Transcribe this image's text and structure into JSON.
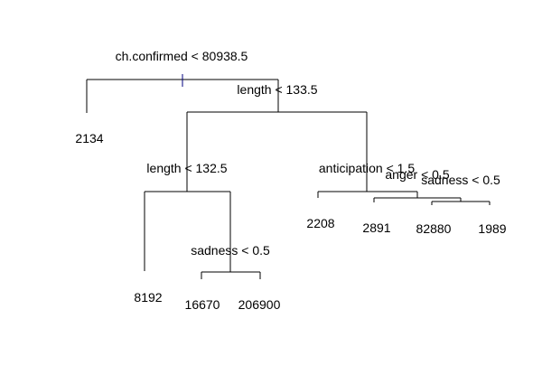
{
  "tree": {
    "root_split": "ch.confirmed < 80938.5",
    "splits": {
      "length_133": "length < 133.5",
      "length_132": "length < 132.5",
      "sadness_left": "sadness < 0.5",
      "anticipation": "anticipation < 1.5",
      "anger": "anger < 0.5",
      "sadness_right": "sadness < 0.5"
    },
    "leaves": {
      "l2134": "2134",
      "l8192": "8192",
      "l16670": "16670",
      "l206900": "206900",
      "l2208": "2208",
      "l2891": "2891",
      "l82880": "82880",
      "l1989": "1989"
    }
  }
}
